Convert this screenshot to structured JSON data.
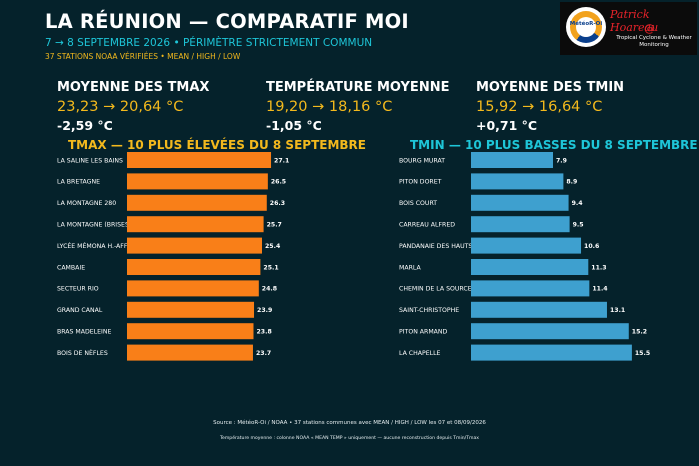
{
  "header": {
    "title": "LA RÉUNION — COMPARATIF MOI",
    "subtitle": "7 → 8 SEPTEMBRE 2026 • PÉRIMÈTRE STRICTEMENT COMMUN",
    "subnote": "37 STATIONS NOAA VÉRIFIÉES • MEAN / HIGH / LOW"
  },
  "logo": {
    "brand": "MétéoR-Oi",
    "signature": "Patrick Hoareau",
    "tagline": "Tropical Cyclone & Weather Monitoring"
  },
  "kpis": [
    {
      "label": "MOYENNE DES TMAX",
      "value": "23,23 → 20,64 °C",
      "delta": "-2,59 °C"
    },
    {
      "label": "TEMPÉRATURE MOYENNE",
      "value": "19,20 → 18,16 °C",
      "delta": "-1,05 °C"
    },
    {
      "label": "MOYENNE DES TMIN",
      "value": "15,92 → 16,64 °C",
      "delta": "+0,71 °C"
    }
  ],
  "chart_data": [
    {
      "type": "bar",
      "orientation": "horizontal",
      "title": "TMAX — 10 PLUS ÉLEVÉES DU 8 SEPTEMBRE",
      "color": "#f97f18",
      "categories": [
        "LA SALINE LES BAINS",
        "LA BRETAGNE",
        "LA MONTAGNE 280",
        "LA MONTAGNE (BRISES)",
        "LYCÉE MÉMONA H.-AFFJEE",
        "CAMBAIE",
        "SECTEUR RIO",
        "GRAND CANAL",
        "BRAS MADELEINE",
        "BOIS DE NÈFLES"
      ],
      "values": [
        27.1,
        26.5,
        26.3,
        25.7,
        25.4,
        25.1,
        24.8,
        23.9,
        23.8,
        23.7
      ],
      "value_labels": [
        "27.1",
        "26.5",
        "26.3",
        "25.7",
        "25.4",
        "25.1",
        "24.8",
        "23.9",
        "23.8",
        "23.7"
      ]
    },
    {
      "type": "bar",
      "orientation": "horizontal",
      "title": "TMIN — 10 PLUS BASSES DU 8 SEPTEMBRE",
      "color": "#3ea0cf",
      "categories": [
        "BOURG MURAT",
        "PITON DORET",
        "BOIS COURT",
        "CARREAU ALFRED",
        "PANDANAIE DES HAUTS D",
        "MARLA",
        "CHEMIN DE LA SOURCE",
        "SAINT-CHRISTOPHE",
        "PITON ARMAND",
        "LA CHAPELLE"
      ],
      "values": [
        7.9,
        8.9,
        9.4,
        9.5,
        10.6,
        11.3,
        11.4,
        13.1,
        15.2,
        15.5
      ],
      "value_labels": [
        "7.9",
        "8.9",
        "9.4",
        "9.5",
        "10.6",
        "11.3",
        "11.4",
        "13.1",
        "15.2",
        "15.5"
      ]
    }
  ],
  "footer": {
    "source": "Source : MétéoR-Oi / NOAA • 37 stations communes avec MEAN / HIGH / LOW les 07 et 08/09/2026",
    "note": "Température moyenne : colonne NOAA « MEAN TEMP » uniquement — aucune reconstruction depuis Tmin/Tmax"
  }
}
